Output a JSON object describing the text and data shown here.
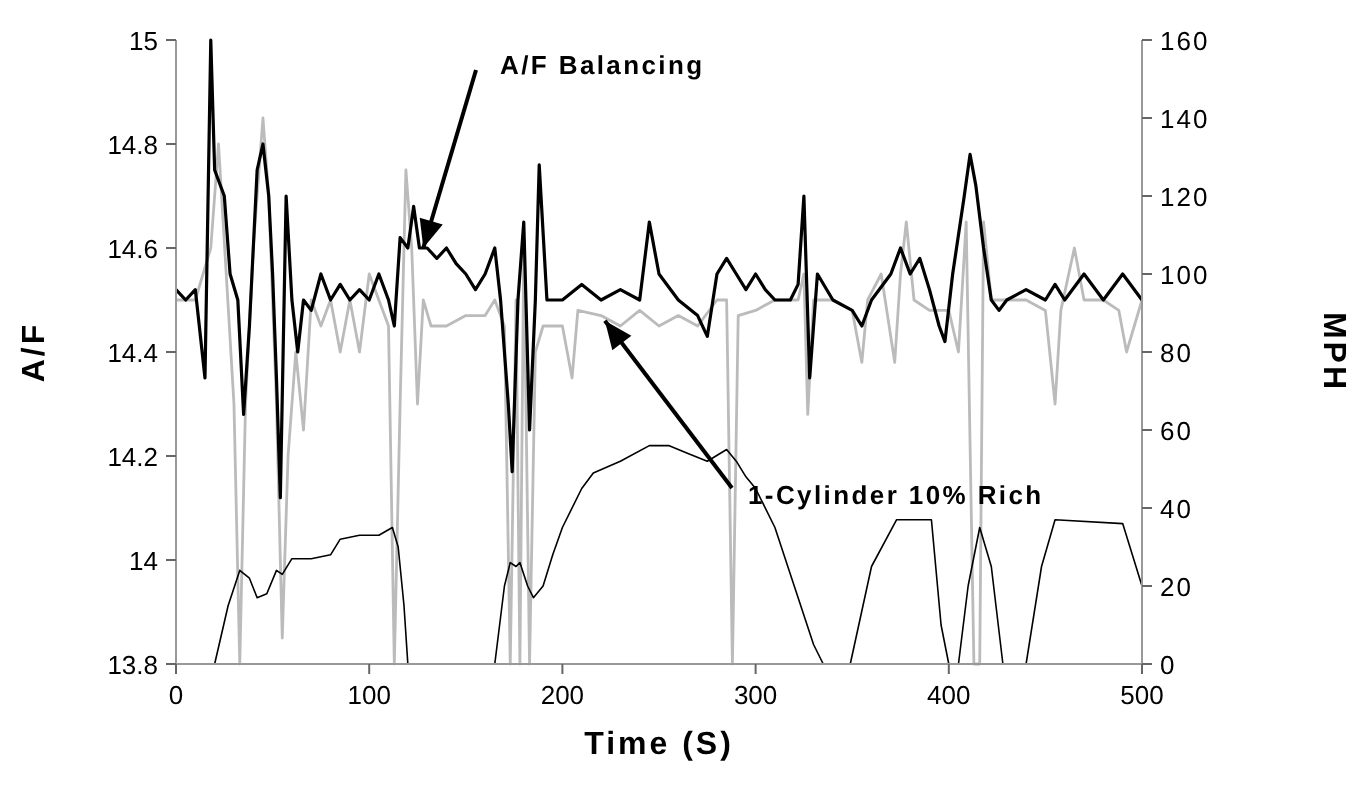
{
  "chart_data": {
    "type": "line",
    "xlabel": "Time (S)",
    "ylabel": "A/F",
    "y2label": "MPH",
    "xlim": [
      0,
      500
    ],
    "xticks": [
      0,
      100,
      200,
      300,
      400,
      500
    ],
    "ylim": [
      13.8,
      15
    ],
    "yticks": [
      13.8,
      14,
      14.2,
      14.4,
      14.6,
      14.8,
      15
    ],
    "y2lim": [
      0,
      160
    ],
    "y2ticks": [
      0,
      20,
      40,
      60,
      80,
      100,
      120,
      140,
      160
    ],
    "grid": false,
    "marker": "none",
    "line_style": "solid",
    "annotations": [
      {
        "text": "A/F Balancing",
        "x": 128,
        "y": 14.6
      },
      {
        "text": "1-Cylinder 10% Rich",
        "x": 222,
        "y": 14.46
      }
    ],
    "series": [
      {
        "color": "#bbbbbb",
        "x": [
          0,
          10,
          18,
          22,
          26,
          30,
          33,
          36,
          40,
          45,
          48,
          52,
          55,
          58,
          62,
          66,
          70,
          75,
          80,
          85,
          90,
          95,
          100,
          105,
          110,
          113,
          116,
          119,
          122,
          125,
          128,
          132,
          140,
          150,
          160,
          165,
          170,
          173,
          176,
          178,
          180,
          183,
          186,
          190,
          200,
          205,
          208,
          220,
          230,
          240,
          250,
          260,
          270,
          280,
          285,
          288,
          291,
          300,
          310,
          322,
          325,
          327,
          330,
          340,
          350,
          355,
          358,
          365,
          372,
          375,
          378,
          382,
          390,
          400,
          405,
          409,
          413,
          416,
          418,
          422,
          430,
          440,
          450,
          455,
          458,
          465,
          470,
          480,
          488,
          492,
          500
        ],
        "values": [
          14.5,
          14.5,
          14.6,
          14.8,
          14.55,
          14.3,
          13.8,
          14.3,
          14.6,
          14.85,
          14.7,
          14.3,
          13.85,
          14.2,
          14.4,
          14.25,
          14.5,
          14.45,
          14.5,
          14.4,
          14.5,
          14.4,
          14.55,
          14.5,
          14.45,
          13.8,
          14.3,
          14.75,
          14.6,
          14.3,
          14.5,
          14.45,
          14.45,
          14.47,
          14.47,
          14.5,
          14.45,
          13.8,
          14.5,
          13.8,
          14.6,
          13.8,
          14.4,
          14.45,
          14.45,
          14.35,
          14.48,
          14.47,
          14.45,
          14.48,
          14.45,
          14.47,
          14.45,
          14.5,
          14.5,
          13.8,
          14.47,
          14.48,
          14.5,
          14.5,
          14.55,
          14.28,
          14.5,
          14.5,
          14.48,
          14.38,
          14.5,
          14.55,
          14.38,
          14.55,
          14.65,
          14.5,
          14.48,
          14.48,
          14.4,
          14.65,
          13.8,
          13.8,
          14.65,
          14.5,
          14.5,
          14.5,
          14.48,
          14.3,
          14.48,
          14.6,
          14.5,
          14.5,
          14.48,
          14.4,
          14.5
        ]
      },
      {
        "color": "#000000",
        "x": [
          0,
          5,
          10,
          15,
          18,
          20,
          25,
          28,
          32,
          35,
          38,
          42,
          45,
          48,
          50,
          52,
          54,
          57,
          60,
          63,
          66,
          70,
          75,
          80,
          85,
          90,
          95,
          100,
          105,
          110,
          113,
          116,
          120,
          123,
          126,
          130,
          135,
          140,
          145,
          150,
          155,
          160,
          165,
          168,
          172,
          174,
          177,
          180,
          183,
          186,
          188,
          192,
          200,
          210,
          220,
          230,
          240,
          245,
          250,
          260,
          270,
          275,
          280,
          285,
          290,
          295,
          300,
          305,
          310,
          318,
          322,
          325,
          328,
          332,
          340,
          350,
          355,
          360,
          370,
          375,
          380,
          385,
          390,
          395,
          398,
          402,
          408,
          411,
          414,
          418,
          422,
          426,
          430,
          440,
          450,
          455,
          460,
          470,
          480,
          490,
          500
        ],
        "values": [
          14.52,
          14.5,
          14.52,
          14.35,
          15,
          14.75,
          14.7,
          14.55,
          14.5,
          14.28,
          14.45,
          14.75,
          14.8,
          14.7,
          14.55,
          14.35,
          14.12,
          14.7,
          14.5,
          14.4,
          14.5,
          14.48,
          14.55,
          14.5,
          14.53,
          14.5,
          14.52,
          14.5,
          14.55,
          14.5,
          14.45,
          14.62,
          14.6,
          14.68,
          14.6,
          14.6,
          14.58,
          14.6,
          14.57,
          14.55,
          14.52,
          14.55,
          14.6,
          14.5,
          14.3,
          14.17,
          14.5,
          14.65,
          14.25,
          14.5,
          14.76,
          14.5,
          14.5,
          14.53,
          14.5,
          14.52,
          14.5,
          14.65,
          14.55,
          14.5,
          14.47,
          14.43,
          14.55,
          14.58,
          14.55,
          14.52,
          14.55,
          14.52,
          14.5,
          14.5,
          14.53,
          14.7,
          14.35,
          14.55,
          14.5,
          14.48,
          14.45,
          14.5,
          14.55,
          14.6,
          14.55,
          14.58,
          14.52,
          14.45,
          14.42,
          14.55,
          14.7,
          14.78,
          14.72,
          14.6,
          14.5,
          14.48,
          14.5,
          14.52,
          14.5,
          14.53,
          14.5,
          14.55,
          14.5,
          14.55,
          14.5
        ]
      },
      {
        "color": "#000000",
        "axis": "y2",
        "x": [
          20,
          27,
          33,
          38,
          42,
          47,
          52,
          55,
          60,
          70,
          80,
          85,
          95,
          105,
          112,
          115,
          118,
          120,
          165,
          170,
          173,
          176,
          178,
          182,
          185,
          190,
          195,
          200,
          210,
          216,
          230,
          245,
          255,
          265,
          275,
          285,
          290,
          295,
          300,
          310,
          320,
          330,
          335,
          349,
          360,
          373,
          391,
          396,
          400,
          405,
          410,
          416,
          422,
          428,
          440,
          448,
          455,
          490,
          500
        ],
        "values": [
          0,
          15,
          24,
          22,
          17,
          18,
          24,
          23,
          27,
          27,
          28,
          32,
          33,
          33,
          35,
          30,
          15,
          0,
          0,
          20,
          26,
          25,
          26,
          20,
          17,
          20,
          28,
          35,
          45,
          49,
          52,
          56,
          56,
          54,
          52,
          55,
          52,
          48,
          45,
          35,
          20,
          5,
          0,
          0,
          25,
          37,
          37,
          10,
          0,
          0,
          20,
          35,
          25,
          0,
          0,
          25,
          37,
          36,
          20
        ]
      }
    ]
  }
}
